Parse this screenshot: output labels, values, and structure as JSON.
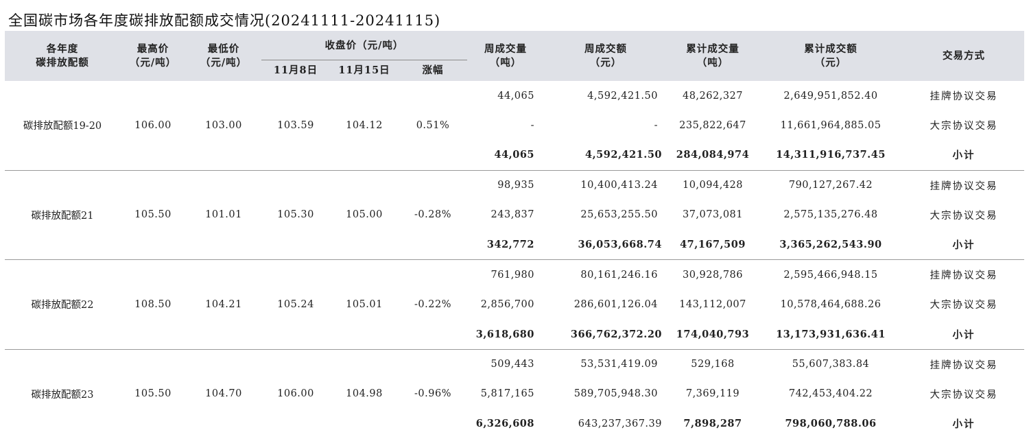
{
  "title": "全国碳市场各年度碳排放配额成交情况(20241111-20241115)",
  "header": {
    "allowance_year": [
      "各年度",
      "碳排放配额"
    ],
    "high_price": [
      "最高价",
      "（元/吨）"
    ],
    "low_price": [
      "最低价",
      "（元/吨）"
    ],
    "close_price": "收盘价（元/吨）",
    "close_nov8": "11月8日",
    "close_nov15": "11月15日",
    "change": "涨幅",
    "weekly_volume": [
      "周成交量",
      "（吨）"
    ],
    "weekly_amount": [
      "周成交额",
      "（元）"
    ],
    "cum_volume": [
      "累计成交量",
      "（吨）"
    ],
    "cum_amount": [
      "累计成交额",
      "（元）"
    ],
    "method": "交易方式"
  },
  "groups": [
    {
      "name": "碳排放配额19-20",
      "high": "106.00",
      "low": "103.00",
      "close_nov8": "103.59",
      "close_nov15": "104.12",
      "change": "0.51%",
      "rows": [
        {
          "weekly_volume": "44,065",
          "weekly_amount": "4,592,421.50",
          "cum_volume": "48,262,327",
          "cum_amount": "2,649,951,852.40",
          "method": "挂牌协议交易"
        },
        {
          "weekly_volume": "-",
          "weekly_amount": "-",
          "cum_volume": "235,822,647",
          "cum_amount": "11,661,964,885.05",
          "method": "大宗协议交易"
        },
        {
          "weekly_volume": "44,065",
          "weekly_amount": "4,592,421.50",
          "cum_volume": "284,084,974",
          "cum_amount": "14,311,916,737.45",
          "method": "小计"
        }
      ]
    },
    {
      "name": "碳排放配额21",
      "high": "105.50",
      "low": "101.01",
      "close_nov8": "105.30",
      "close_nov15": "105.00",
      "change": "-0.28%",
      "rows": [
        {
          "weekly_volume": "98,935",
          "weekly_amount": "10,400,413.24",
          "cum_volume": "10,094,428",
          "cum_amount": "790,127,267.42",
          "method": "挂牌协议交易"
        },
        {
          "weekly_volume": "243,837",
          "weekly_amount": "25,653,255.50",
          "cum_volume": "37,073,081",
          "cum_amount": "2,575,135,276.48",
          "method": "大宗协议交易"
        },
        {
          "weekly_volume": "342,772",
          "weekly_amount": "36,053,668.74",
          "cum_volume": "47,167,509",
          "cum_amount": "3,365,262,543.90",
          "method": "小计"
        }
      ]
    },
    {
      "name": "碳排放配额22",
      "high": "108.50",
      "low": "104.21",
      "close_nov8": "105.24",
      "close_nov15": "105.01",
      "change": "-0.22%",
      "rows": [
        {
          "weekly_volume": "761,980",
          "weekly_amount": "80,161,246.16",
          "cum_volume": "30,928,786",
          "cum_amount": "2,595,466,948.15",
          "method": "挂牌协议交易"
        },
        {
          "weekly_volume": "2,856,700",
          "weekly_amount": "286,601,126.04",
          "cum_volume": "143,112,007",
          "cum_amount": "10,578,464,688.26",
          "method": "大宗协议交易"
        },
        {
          "weekly_volume": "3,618,680",
          "weekly_amount": "366,762,372.20",
          "cum_volume": "174,040,793",
          "cum_amount": "13,173,931,636.41",
          "method": "小计"
        }
      ]
    },
    {
      "name": "碳排放配额23",
      "high": "105.50",
      "low": "104.70",
      "close_nov8": "106.00",
      "close_nov15": "104.98",
      "change": "-0.96%",
      "rows": [
        {
          "weekly_volume": "509,443",
          "weekly_amount": "53,531,419.09",
          "cum_volume": "529,168",
          "cum_amount": "55,607,383.84",
          "method": "挂牌协议交易"
        },
        {
          "weekly_volume": "5,817,165",
          "weekly_amount": "589,705,948.30",
          "cum_volume": "7,369,119",
          "cum_amount": "742,453,404.22",
          "method": "大宗协议交易"
        },
        {
          "weekly_volume": "6,326,608",
          "weekly_amount": "643,237,367.39",
          "cum_volume": "7,898,287",
          "cum_amount": "798,060,788.06",
          "method": "小计"
        }
      ]
    }
  ],
  "subtotal_bold": {
    "weekly_volume": [
      true,
      true,
      true,
      true
    ],
    "weekly_amount": [
      true,
      true,
      true,
      false
    ],
    "cum_volume": [
      true,
      true,
      true,
      true
    ],
    "cum_amount": [
      true,
      true,
      true,
      true
    ]
  },
  "colors": {
    "header_bg": "#dfe1e7",
    "text": "#222222",
    "row_divider": "#999999"
  }
}
